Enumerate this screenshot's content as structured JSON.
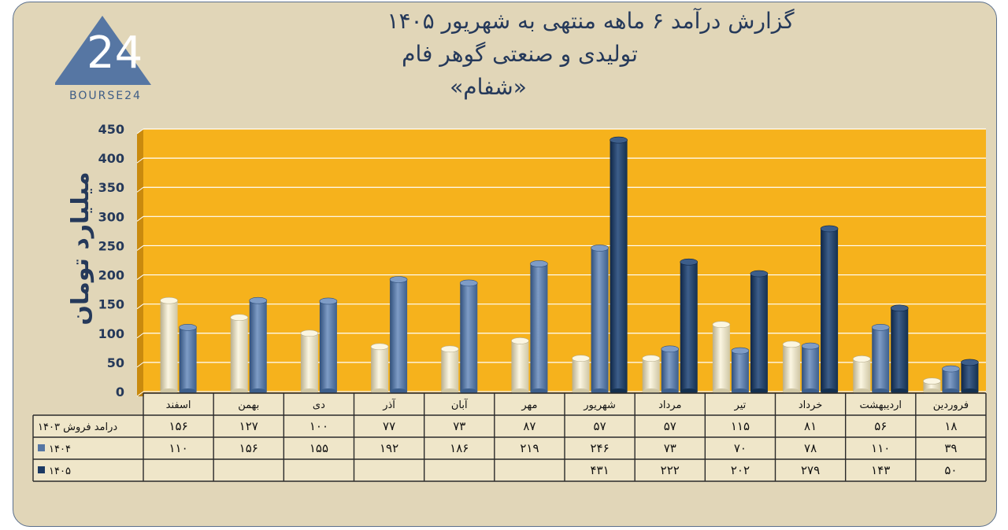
{
  "brand": {
    "logo_text": "BOURSE24",
    "logo_mark": "24",
    "colors": {
      "logo": "#4f6f98"
    }
  },
  "title_lines": [
    "گزارش  درآمد ۶ ماهه منتهی به شهریور ۱۴۰۵",
    "تولیدی و صنعتی گوهر فام",
    "«شفام»"
  ],
  "chart_data": {
    "type": "bar",
    "title": "گزارش  درآمد ۶ ماهه منتهی به شهریور ۱۴۰۵",
    "ylabel": "میلیارد تومان",
    "ylim": [
      0,
      450
    ],
    "yticks": [
      0,
      50,
      100,
      150,
      200,
      250,
      300,
      350,
      400,
      450
    ],
    "ytick_labels": [
      "0",
      "50",
      "100",
      "150",
      "200",
      "250",
      "300",
      "350",
      "400",
      "450"
    ],
    "grid": true,
    "categories": [
      "فروردین",
      "اردیبهشت",
      "خرداد",
      "تیر",
      "مرداد",
      "شهریور",
      "مهر",
      "آبان",
      "آذر",
      "دی",
      "بهمن",
      "اسفند"
    ],
    "series": [
      {
        "name": "درامد فروش ۱۴۰۳",
        "values": [
          18,
          56,
          81,
          115,
          57,
          57,
          87,
          73,
          77,
          100,
          127,
          156
        ],
        "labels": [
          "۱۸",
          "۵۶",
          "۸۱",
          "۱۱۵",
          "۵۷",
          "۵۷",
          "۸۷",
          "۷۳",
          "۷۷",
          "۱۰۰",
          "۱۲۷",
          "۱۵۶"
        ],
        "color": "#e8dfc0"
      },
      {
        "name": "۱۴۰۴",
        "values": [
          39,
          110,
          78,
          70,
          73,
          246,
          219,
          186,
          192,
          155,
          156,
          110
        ],
        "labels": [
          "۳۹",
          "۱۱۰",
          "۷۸",
          "۷۰",
          "۷۳",
          "۲۴۶",
          "۲۱۹",
          "۱۸۶",
          "۱۹۲",
          "۱۵۵",
          "۱۵۶",
          "۱۱۰"
        ],
        "color": "#5676a3"
      },
      {
        "name": "۱۴۰۵",
        "values": [
          50,
          143,
          279,
          202,
          222,
          431,
          null,
          null,
          null,
          null,
          null,
          null
        ],
        "labels": [
          "۵۰",
          "۱۴۳",
          "۲۷۹",
          "۲۰۲",
          "۲۲۲",
          "۴۳۱",
          "",
          "",
          "",
          "",
          "",
          ""
        ],
        "color": "#1c3a63"
      }
    ],
    "colors": {
      "plot_background": "#f6b21c",
      "gridline": "#ffffff",
      "table_background": "#efe6c9"
    }
  }
}
